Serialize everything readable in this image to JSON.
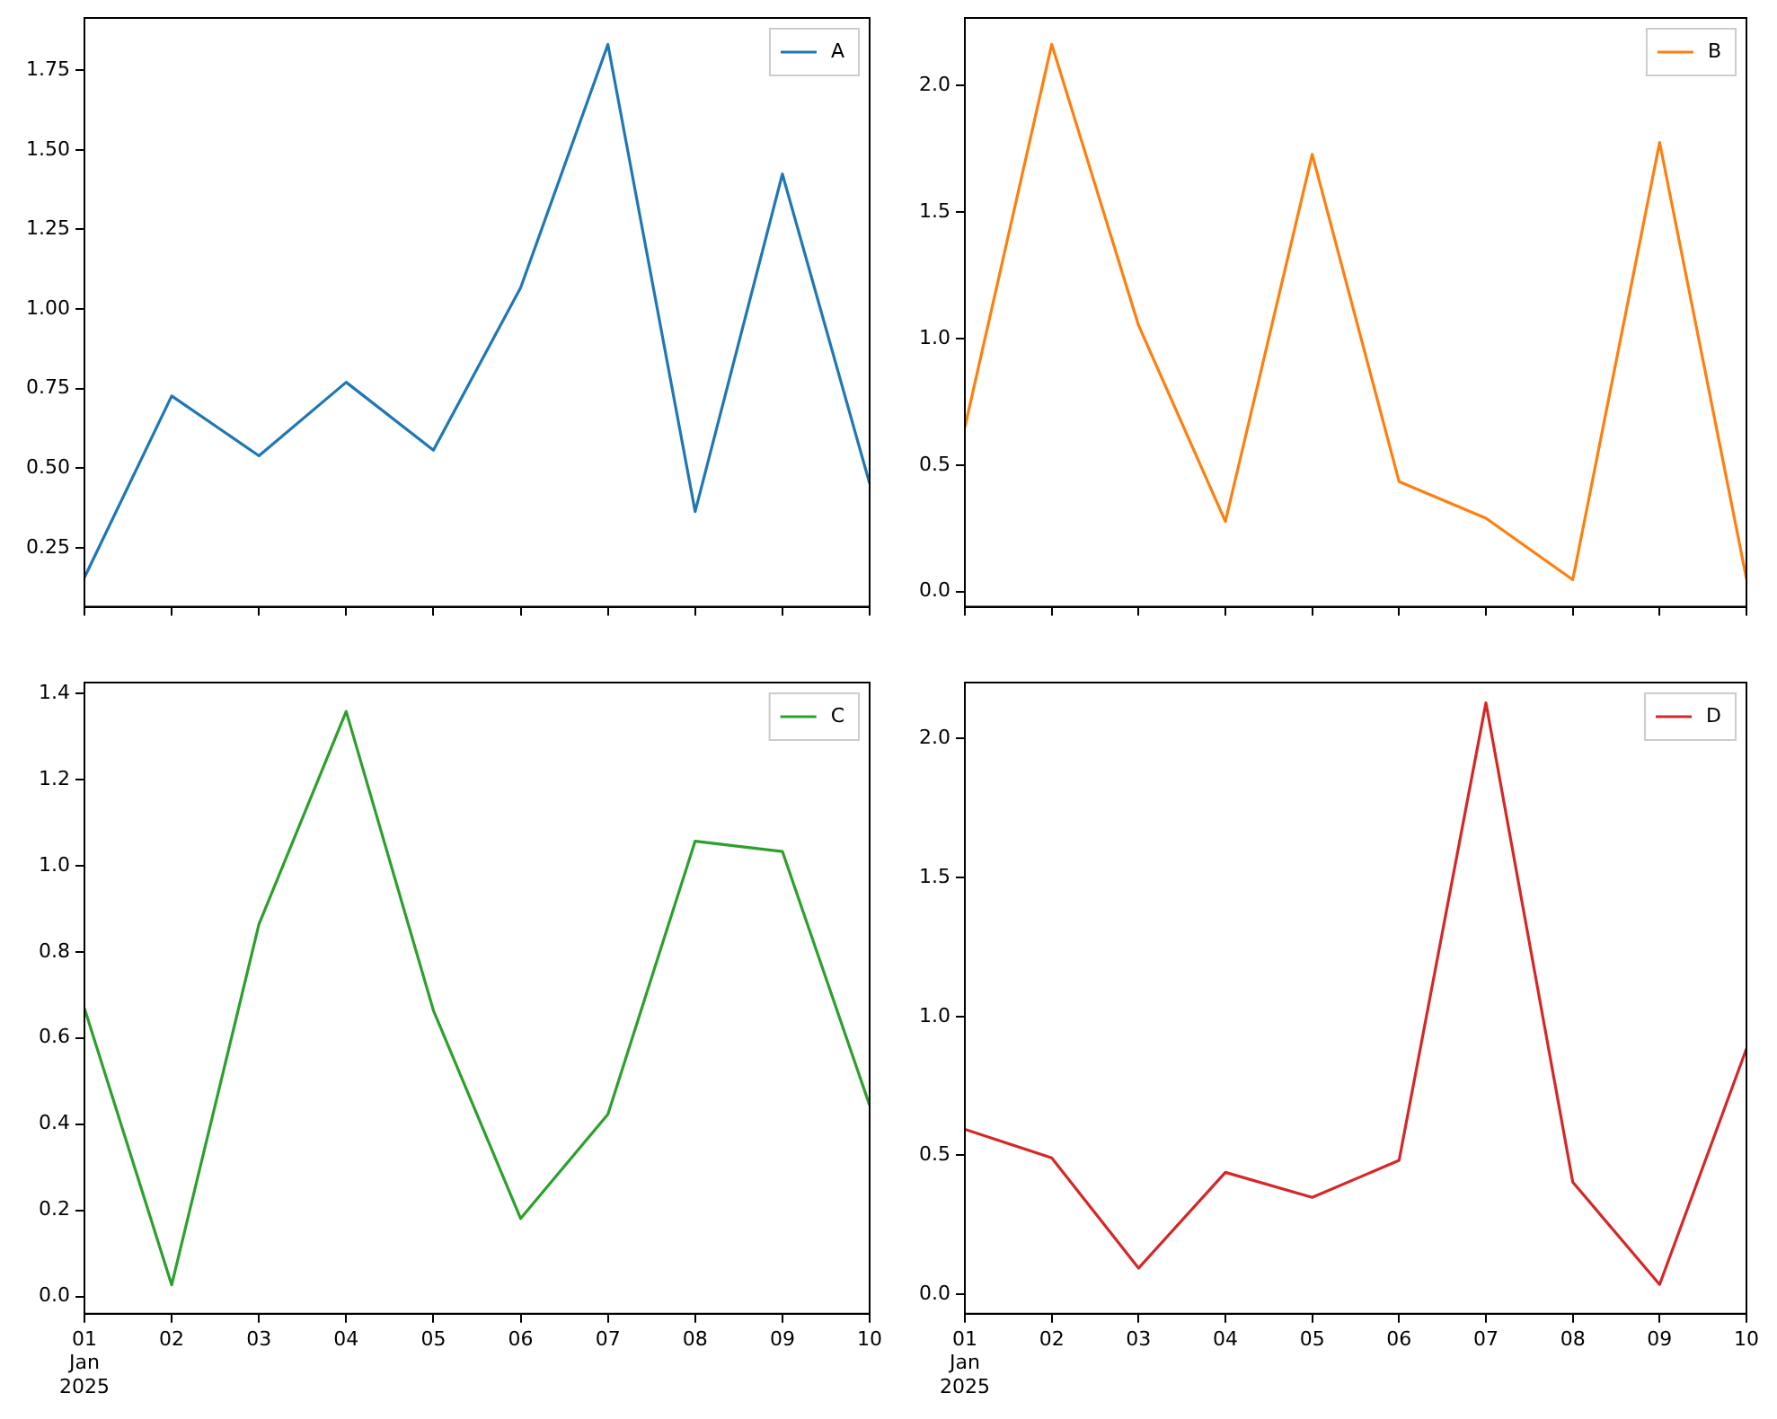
{
  "chart_data": [
    {
      "type": "line",
      "x": [
        "2025-01-01",
        "2025-01-02",
        "2025-01-03",
        "2025-01-04",
        "2025-01-05",
        "2025-01-06",
        "2025-01-07",
        "2025-01-08",
        "2025-01-09",
        "2025-01-10"
      ],
      "series": [
        {
          "name": "A",
          "color": "#1f77b4",
          "values": [
            0.157,
            0.727,
            0.539,
            0.77,
            0.557,
            1.067,
            1.831,
            0.364,
            1.424,
            0.452
          ]
        }
      ],
      "xlim": [
        "2025-01-01",
        "2025-01-10"
      ],
      "xticks": [
        {
          "value": "2025-01-01",
          "label": null
        },
        {
          "value": "2025-01-02",
          "label": null
        },
        {
          "value": "2025-01-03",
          "label": null
        },
        {
          "value": "2025-01-04",
          "label": null
        },
        {
          "value": "2025-01-05",
          "label": null
        },
        {
          "value": "2025-01-06",
          "label": null
        },
        {
          "value": "2025-01-07",
          "label": null
        },
        {
          "value": "2025-01-08",
          "label": null
        },
        {
          "value": "2025-01-09",
          "label": null
        },
        {
          "value": "2025-01-10",
          "label": null
        }
      ],
      "ylim": [
        0.065,
        1.914
      ],
      "yticks": [
        {
          "value": 0.25,
          "label": "0.25"
        },
        {
          "value": 0.5,
          "label": "0.50"
        },
        {
          "value": 0.75,
          "label": "0.75"
        },
        {
          "value": 1.0,
          "label": "1.00"
        },
        {
          "value": 1.25,
          "label": "1.25"
        },
        {
          "value": 1.5,
          "label": "1.50"
        },
        {
          "value": 1.75,
          "label": "1.75"
        }
      ],
      "tick_labels": "y",
      "grid": false,
      "legend": "top right",
      "marker": "none",
      "line_style": "solid"
    },
    {
      "type": "line",
      "x": [
        "2025-01-01",
        "2025-01-02",
        "2025-01-03",
        "2025-01-04",
        "2025-01-05",
        "2025-01-06",
        "2025-01-07",
        "2025-01-08",
        "2025-01-09",
        "2025-01-10"
      ],
      "series": [
        {
          "name": "B",
          "color": "#ff7f0e",
          "values": [
            0.65,
            2.164,
            1.053,
            0.277,
            1.729,
            0.435,
            0.29,
            0.047,
            1.776,
            0.051
          ]
        }
      ],
      "xlim": [
        "2025-01-01",
        "2025-01-10"
      ],
      "xticks": [
        {
          "value": "2025-01-01",
          "label": null
        },
        {
          "value": "2025-01-02",
          "label": null
        },
        {
          "value": "2025-01-03",
          "label": null
        },
        {
          "value": "2025-01-04",
          "label": null
        },
        {
          "value": "2025-01-05",
          "label": null
        },
        {
          "value": "2025-01-06",
          "label": null
        },
        {
          "value": "2025-01-07",
          "label": null
        },
        {
          "value": "2025-01-08",
          "label": null
        },
        {
          "value": "2025-01-09",
          "label": null
        },
        {
          "value": "2025-01-10",
          "label": null
        }
      ],
      "ylim": [
        -0.06,
        2.268
      ],
      "yticks": [
        {
          "value": 0,
          "label": "0.0"
        },
        {
          "value": 0.5,
          "label": "0.5"
        },
        {
          "value": 1,
          "label": "1.0"
        },
        {
          "value": 1.5,
          "label": "1.5"
        },
        {
          "value": 2,
          "label": "2.0"
        }
      ],
      "tick_labels": "y",
      "grid": false,
      "legend": "top right",
      "marker": "none",
      "line_style": "solid"
    },
    {
      "type": "line",
      "x": [
        "2025-01-01",
        "2025-01-02",
        "2025-01-03",
        "2025-01-04",
        "2025-01-05",
        "2025-01-06",
        "2025-01-07",
        "2025-01-08",
        "2025-01-09",
        "2025-01-10"
      ],
      "series": [
        {
          "name": "C",
          "color": "#2ca02c",
          "values": [
            0.669,
            0.027,
            0.864,
            1.358,
            0.664,
            0.181,
            0.423,
            1.057,
            1.033,
            0.444
          ]
        }
      ],
      "xlim": [
        "2025-01-01",
        "2025-01-10"
      ],
      "xticks": [
        {
          "value": "2025-01-01",
          "label": "01\nJan\n2025"
        },
        {
          "value": "2025-01-02",
          "label": "02"
        },
        {
          "value": "2025-01-03",
          "label": "03"
        },
        {
          "value": "2025-01-04",
          "label": "04"
        },
        {
          "value": "2025-01-05",
          "label": "05"
        },
        {
          "value": "2025-01-06",
          "label": "06"
        },
        {
          "value": "2025-01-07",
          "label": "07"
        },
        {
          "value": "2025-01-08",
          "label": "08"
        },
        {
          "value": "2025-01-09",
          "label": "09"
        },
        {
          "value": "2025-01-10",
          "label": "10"
        }
      ],
      "ylim": [
        -0.04,
        1.425
      ],
      "yticks": [
        {
          "value": 0,
          "label": "0.0"
        },
        {
          "value": 0.2,
          "label": "0.2"
        },
        {
          "value": 0.4,
          "label": "0.4"
        },
        {
          "value": 0.6,
          "label": "0.6"
        },
        {
          "value": 0.8,
          "label": "0.8"
        },
        {
          "value": 1.0,
          "label": "1.0"
        },
        {
          "value": 1.2,
          "label": "1.2"
        },
        {
          "value": 1.4,
          "label": "1.4"
        }
      ],
      "grid": false,
      "legend": "top right",
      "marker": "none",
      "line_style": "solid"
    },
    {
      "type": "line",
      "x": [
        "2025-01-01",
        "2025-01-02",
        "2025-01-03",
        "2025-01-04",
        "2025-01-05",
        "2025-01-06",
        "2025-01-07",
        "2025-01-08",
        "2025-01-09",
        "2025-01-10"
      ],
      "series": [
        {
          "name": "D",
          "color": "#d62728",
          "values": [
            0.594,
            0.491,
            0.094,
            0.439,
            0.349,
            0.482,
            2.129,
            0.404,
            0.035,
            0.884
          ]
        }
      ],
      "xlim": [
        "2025-01-01",
        "2025-01-10"
      ],
      "xticks": [
        {
          "value": "2025-01-01",
          "label": "01\nJan\n2025"
        },
        {
          "value": "2025-01-02",
          "label": "02"
        },
        {
          "value": "2025-01-03",
          "label": "03"
        },
        {
          "value": "2025-01-04",
          "label": "04"
        },
        {
          "value": "2025-01-05",
          "label": "05"
        },
        {
          "value": "2025-01-06",
          "label": "06"
        },
        {
          "value": "2025-01-07",
          "label": "07"
        },
        {
          "value": "2025-01-08",
          "label": "08"
        },
        {
          "value": "2025-01-09",
          "label": "09"
        },
        {
          "value": "2025-01-10",
          "label": "10"
        }
      ],
      "ylim": [
        -0.07,
        2.202
      ],
      "yticks": [
        {
          "value": 0,
          "label": "0.0"
        },
        {
          "value": 0.5,
          "label": "0.5"
        },
        {
          "value": 1,
          "label": "1.0"
        },
        {
          "value": 1.5,
          "label": "1.5"
        },
        {
          "value": 2,
          "label": "2.0"
        }
      ],
      "grid": false,
      "legend": "top right",
      "marker": "none",
      "line_style": "solid"
    }
  ]
}
